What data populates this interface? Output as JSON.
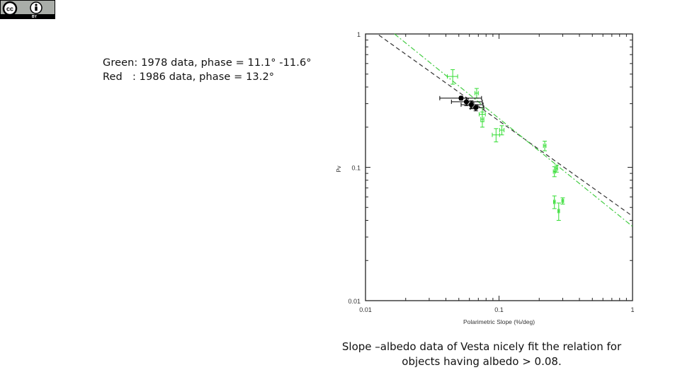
{
  "license_badge": {
    "icons": [
      "cc-icon",
      "attribution-icon"
    ],
    "label": "BY"
  },
  "legend_note": {
    "green_label": "Green",
    "green_text": ": 1978 data, phase = 11.1° -11.6°",
    "red_label": "Red   ",
    "red_text": ": 1986 data, phase = 13.2°"
  },
  "caption": {
    "line1": "Slope –albedo data of Vesta nicely fit the relation for",
    "line2": "objects having albedo > 0.08."
  },
  "colors": {
    "green": "#33dd33",
    "black": "#000000",
    "fit_green": "#44cc44",
    "fit_black": "#333333",
    "axis": "#000000"
  },
  "chart_data": {
    "type": "scatter",
    "title": "",
    "xlabel": "Polarimetric Slope (%/deg)",
    "ylabel": "Pv",
    "xscale": "log",
    "yscale": "log",
    "xlim": [
      0.01,
      1
    ],
    "ylim": [
      0.01,
      1
    ],
    "x_ticks": [
      "0.01",
      "0.1",
      "1"
    ],
    "y_ticks": [
      "0.01",
      "0.1",
      "1"
    ],
    "grid": false,
    "legend": null,
    "series": [
      {
        "name": "Green (1978 data)",
        "color": "#33dd33",
        "marker": "open-square-with-errorbars",
        "points": [
          {
            "x": 0.045,
            "y": 0.48,
            "xerr": 0.004,
            "yerr": 0.06
          },
          {
            "x": 0.068,
            "y": 0.36,
            "xerr": 0.002,
            "yerr": 0.03
          },
          {
            "x": 0.075,
            "y": 0.25,
            "xerr": 0.004,
            "yerr": 0.03
          },
          {
            "x": 0.075,
            "y": 0.23,
            "xerr": 0.002,
            "yerr": 0.03
          },
          {
            "x": 0.095,
            "y": 0.175,
            "xerr": 0.006,
            "yerr": 0.02
          },
          {
            "x": 0.105,
            "y": 0.19,
            "xerr": 0.004,
            "yerr": 0.015
          },
          {
            "x": 0.22,
            "y": 0.145,
            "xerr": 0.005,
            "yerr": 0.012
          },
          {
            "x": 0.26,
            "y": 0.093,
            "xerr": 0.005,
            "yerr": 0.008
          },
          {
            "x": 0.27,
            "y": 0.098,
            "xerr": 0.005,
            "yerr": 0.006
          },
          {
            "x": 0.26,
            "y": 0.055,
            "xerr": 0.004,
            "yerr": 0.006
          },
          {
            "x": 0.3,
            "y": 0.056,
            "xerr": 0.005,
            "yerr": 0.003
          },
          {
            "x": 0.28,
            "y": 0.047,
            "xerr": 0.004,
            "yerr": 0.007
          }
        ]
      },
      {
        "name": "Red (1986 data)",
        "color": "#000000",
        "marker": "filled-circle-with-errorbars",
        "points": [
          {
            "x": 0.052,
            "y": 0.33,
            "xerr_lo": 0.016,
            "xerr_hi": 0.022,
            "yerr": 0.01
          },
          {
            "x": 0.057,
            "y": 0.31,
            "xerr_lo": 0.013,
            "xerr_hi": 0.018,
            "yerr": 0.02
          },
          {
            "x": 0.062,
            "y": 0.295,
            "xerr_lo": 0.01,
            "xerr_hi": 0.014,
            "yerr": 0.02
          },
          {
            "x": 0.067,
            "y": 0.28,
            "xerr_lo": 0.006,
            "xerr_hi": 0.01,
            "yerr": 0.015
          }
        ]
      }
    ],
    "fit_lines": [
      {
        "name": "dashed black fit",
        "style": "dashed",
        "color": "#333333",
        "from": {
          "x": 0.0126,
          "y": 0.98
        },
        "to": {
          "x": 1.0,
          "y": 0.043
        }
      },
      {
        "name": "dash-dot green fit",
        "style": "dashdot",
        "color": "#44cc44",
        "from": {
          "x": 0.0165,
          "y": 1.0
        },
        "to": {
          "x": 1.0,
          "y": 0.036
        }
      }
    ]
  }
}
